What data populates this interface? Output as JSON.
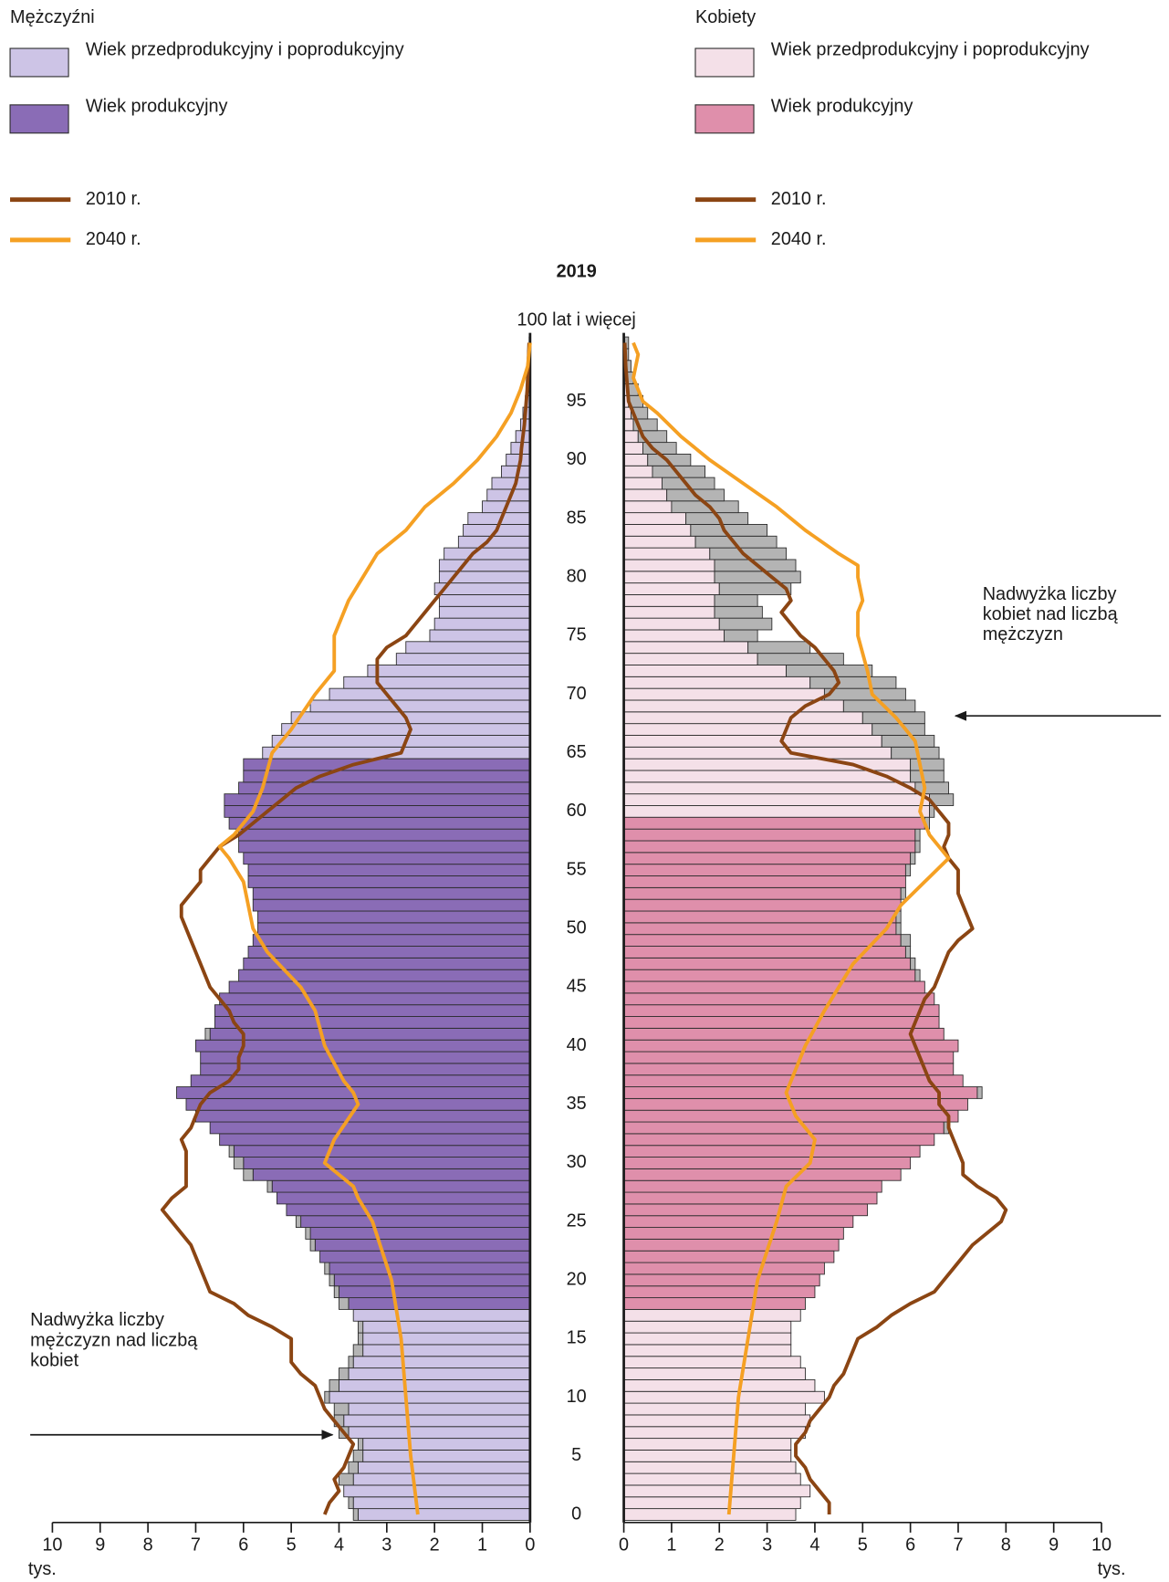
{
  "chart_data": {
    "type": "pyramid",
    "title": "2019",
    "y": [
      0,
      1,
      2,
      3,
      4,
      5,
      6,
      7,
      8,
      9,
      10,
      11,
      12,
      13,
      14,
      15,
      16,
      17,
      18,
      19,
      20,
      21,
      22,
      23,
      24,
      25,
      26,
      27,
      28,
      29,
      30,
      31,
      32,
      33,
      34,
      35,
      36,
      37,
      38,
      39,
      40,
      41,
      42,
      43,
      44,
      45,
      46,
      47,
      48,
      49,
      50,
      51,
      52,
      53,
      54,
      55,
      56,
      57,
      58,
      59,
      60,
      61,
      62,
      63,
      64,
      65,
      66,
      67,
      68,
      69,
      70,
      71,
      72,
      73,
      74,
      75,
      76,
      77,
      78,
      79,
      80,
      81,
      82,
      83,
      84,
      85,
      86,
      87,
      88,
      89,
      90,
      91,
      92,
      93,
      94,
      95,
      96,
      97,
      98,
      99,
      100
    ],
    "ylim": [
      -0.6,
      100.6
    ],
    "yticks": [
      0,
      5,
      10,
      15,
      20,
      25,
      30,
      35,
      40,
      45,
      50,
      55,
      60,
      65,
      70,
      75,
      80,
      85,
      90,
      95,
      {
        "value": 100,
        "label": "100 lat i więcej"
      }
    ],
    "surplus_color": "#b4b4b4",
    "sides": [
      {
        "name": "Mężczyźni",
        "direction": "left",
        "xlim": [
          0,
          10
        ],
        "xticks": [
          0,
          1,
          2,
          3,
          4,
          5,
          6,
          7,
          8,
          9,
          10
        ],
        "xlabel": "tys.",
        "annotation": [
          "Nadwyżka liczby",
          "mężczyzn nad liczbą",
          "kobiet"
        ],
        "series": [
          {
            "name": "Wiek przedprodukcyjny i poprodukcyjny",
            "color": "#cdc4e6",
            "values": [
              3.7,
              3.8,
              3.9,
              4.0,
              3.8,
              3.7,
              3.6,
              4.0,
              4.1,
              4.1,
              4.3,
              4.2,
              4.0,
              3.8,
              3.7,
              3.6,
              3.6,
              3.7,
              null,
              null,
              null,
              null,
              null,
              null,
              null,
              null,
              null,
              null,
              null,
              null,
              null,
              null,
              null,
              null,
              null,
              null,
              null,
              null,
              null,
              null,
              null,
              null,
              null,
              null,
              null,
              null,
              null,
              null,
              null,
              null,
              null,
              null,
              null,
              null,
              null,
              null,
              null,
              null,
              null,
              null,
              null,
              null,
              null,
              null,
              null,
              5.6,
              5.4,
              5.2,
              5.0,
              4.6,
              4.2,
              3.9,
              3.4,
              2.8,
              2.6,
              2.1,
              2.0,
              1.9,
              1.9,
              2.0,
              1.9,
              1.9,
              1.8,
              1.5,
              1.4,
              1.3,
              1.0,
              0.9,
              0.8,
              0.6,
              0.5,
              0.4,
              0.3,
              0.2,
              0.15,
              0.1,
              0.07,
              0.05,
              0.03,
              0.02,
              0.02
            ]
          },
          {
            "name": "Wiek produkcyjny",
            "color": "#8a6cb6",
            "values": [
              null,
              null,
              null,
              null,
              null,
              null,
              null,
              null,
              null,
              null,
              null,
              null,
              null,
              null,
              null,
              null,
              null,
              null,
              4.0,
              4.1,
              4.2,
              4.3,
              4.4,
              4.6,
              4.7,
              4.9,
              5.1,
              5.3,
              5.5,
              6.0,
              6.2,
              6.3,
              6.5,
              6.7,
              7.0,
              7.2,
              7.4,
              7.1,
              6.9,
              6.9,
              7.0,
              6.8,
              6.6,
              6.6,
              6.5,
              6.3,
              6.1,
              6.0,
              5.9,
              5.8,
              5.7,
              5.7,
              5.8,
              5.8,
              5.9,
              5.9,
              6.0,
              6.1,
              6.1,
              6.3,
              6.4,
              6.4,
              6.1,
              6.0,
              6.0,
              null,
              null,
              null,
              null,
              null,
              null,
              null,
              null,
              null,
              null,
              null,
              null,
              null,
              null,
              null,
              null,
              null,
              null,
              null,
              null,
              null,
              null,
              null,
              null,
              null,
              null,
              null,
              null,
              null,
              null,
              null,
              null,
              null,
              null,
              null,
              null
            ]
          }
        ],
        "lines": [
          {
            "name": "2010 r.",
            "color": "#8b4513",
            "values": [
              4.3,
              4.2,
              4.0,
              4.1,
              3.9,
              3.8,
              3.7,
              3.9,
              4.1,
              4.3,
              4.4,
              4.5,
              4.8,
              5.0,
              5.0,
              5.0,
              5.4,
              5.9,
              6.2,
              6.7,
              6.8,
              6.9,
              7.0,
              7.1,
              7.3,
              7.5,
              7.7,
              7.5,
              7.2,
              7.2,
              7.2,
              7.2,
              7.3,
              7.1,
              7.0,
              6.9,
              6.7,
              6.3,
              6.1,
              6.1,
              6.0,
              6.0,
              6.2,
              6.3,
              6.5,
              6.7,
              6.8,
              6.9,
              7.0,
              7.1,
              7.2,
              7.3,
              7.3,
              7.1,
              6.9,
              6.9,
              6.7,
              6.5,
              6.1,
              5.8,
              5.5,
              5.2,
              4.9,
              4.4,
              3.7,
              2.7,
              2.6,
              2.5,
              2.6,
              2.8,
              3.0,
              3.2,
              3.2,
              3.2,
              3.0,
              2.6,
              2.4,
              2.2,
              2.0,
              1.8,
              1.6,
              1.4,
              1.2,
              0.9,
              0.7,
              0.6,
              0.5,
              0.4,
              0.3,
              0.25,
              0.2,
              0.18,
              0.15,
              0.12,
              0.1,
              0.08,
              0.06,
              0.05,
              0.04,
              0.03,
              0.02
            ]
          },
          {
            "name": "2040 r.",
            "color": "#f5a023",
            "x": [
              0,
              5,
              10,
              15,
              20,
              25,
              27,
              28,
              30,
              31,
              32,
              35,
              36,
              37,
              40,
              43,
              45,
              48,
              50,
              52,
              54,
              56,
              57,
              58,
              60,
              62,
              65,
              67,
              70,
              72,
              75,
              78,
              80,
              82,
              84,
              86,
              88,
              90,
              92,
              94,
              96,
              98,
              100
            ],
            "values": [
              2.35,
              2.5,
              2.6,
              2.7,
              2.9,
              3.3,
              3.6,
              3.7,
              4.3,
              4.2,
              4.1,
              3.6,
              3.7,
              3.9,
              4.3,
              4.5,
              4.8,
              5.5,
              5.8,
              5.9,
              6.0,
              6.3,
              6.5,
              6.2,
              5.8,
              5.6,
              5.4,
              5.0,
              4.5,
              4.1,
              4.1,
              3.8,
              3.5,
              3.2,
              2.6,
              2.2,
              1.6,
              1.1,
              0.7,
              0.4,
              0.2,
              0.05,
              0
            ]
          }
        ]
      },
      {
        "name": "Kobiety",
        "direction": "right",
        "xlim": [
          0,
          10
        ],
        "xticks": [
          0,
          1,
          2,
          3,
          4,
          5,
          6,
          7,
          8,
          9,
          10
        ],
        "xlabel": "tys.",
        "annotation": [
          "Nadwyżka liczby",
          "kobiet nad liczbą",
          "mężczyzn"
        ],
        "series": [
          {
            "name": "Wiek przedprodukcyjny i poprodukcyjny",
            "color": "#f4e0e8",
            "values": [
              3.6,
              3.7,
              3.9,
              3.7,
              3.6,
              3.5,
              3.5,
              3.8,
              3.9,
              3.8,
              4.2,
              4.0,
              3.8,
              3.7,
              3.5,
              3.5,
              3.5,
              3.7,
              null,
              null,
              null,
              null,
              null,
              null,
              null,
              null,
              null,
              null,
              null,
              null,
              null,
              null,
              null,
              null,
              null,
              null,
              null,
              null,
              null,
              null,
              null,
              null,
              null,
              null,
              null,
              null,
              null,
              null,
              null,
              null,
              null,
              null,
              null,
              null,
              null,
              null,
              null,
              null,
              null,
              null,
              6.5,
              6.9,
              6.8,
              6.7,
              6.7,
              6.6,
              6.5,
              6.3,
              6.3,
              6.1,
              5.9,
              5.7,
              5.2,
              4.6,
              3.9,
              2.8,
              3.1,
              2.9,
              2.8,
              3.5,
              3.7,
              3.6,
              3.4,
              3.2,
              3.0,
              2.6,
              2.4,
              2.1,
              1.9,
              1.7,
              1.4,
              1.1,
              0.9,
              0.7,
              0.5,
              0.4,
              0.3,
              0.2,
              0.15,
              0.1,
              0.1
            ]
          },
          {
            "name": "Wiek produkcyjny",
            "color": "#df8fab",
            "values": [
              null,
              null,
              null,
              null,
              null,
              null,
              null,
              null,
              null,
              null,
              null,
              null,
              null,
              null,
              null,
              null,
              null,
              null,
              3.8,
              4.0,
              4.1,
              4.2,
              4.4,
              4.5,
              4.6,
              4.8,
              5.1,
              5.3,
              5.4,
              5.8,
              6.0,
              6.2,
              6.5,
              6.8,
              7.0,
              7.2,
              7.5,
              7.1,
              6.9,
              6.9,
              7.0,
              6.7,
              6.6,
              6.6,
              6.5,
              6.3,
              6.2,
              6.1,
              6.0,
              6.0,
              5.8,
              5.8,
              5.8,
              5.9,
              5.9,
              6.0,
              6.1,
              6.2,
              6.2,
              6.4,
              null,
              null,
              null,
              null,
              null,
              null,
              null,
              null,
              null,
              null,
              null,
              null,
              null,
              null,
              null,
              null,
              null,
              null,
              null,
              null,
              null,
              null,
              null,
              null,
              null,
              null,
              null,
              null,
              null,
              null,
              null,
              null,
              null,
              null,
              null,
              null,
              null,
              null,
              null,
              null,
              null
            ]
          }
        ],
        "lines": [
          {
            "name": "2010 r.",
            "color": "#8b4513",
            "values": [
              4.3,
              4.3,
              4.1,
              3.9,
              3.8,
              3.6,
              3.6,
              3.8,
              3.9,
              4.1,
              4.3,
              4.4,
              4.6,
              4.7,
              4.8,
              4.9,
              5.3,
              5.6,
              6.0,
              6.5,
              6.7,
              6.9,
              7.1,
              7.3,
              7.6,
              7.9,
              8.0,
              7.8,
              7.4,
              7.1,
              7.1,
              7.0,
              6.9,
              6.8,
              6.8,
              6.6,
              6.6,
              6.4,
              6.3,
              6.2,
              6.1,
              6.0,
              6.1,
              6.2,
              6.3,
              6.5,
              6.6,
              6.7,
              6.8,
              7.0,
              7.3,
              7.2,
              7.1,
              7.0,
              7.0,
              7.0,
              6.8,
              6.7,
              6.8,
              6.8,
              6.6,
              6.4,
              6.0,
              5.5,
              4.8,
              3.5,
              3.3,
              3.4,
              3.5,
              3.8,
              4.3,
              4.5,
              4.4,
              4.2,
              4.0,
              3.7,
              3.5,
              3.3,
              3.5,
              3.4,
              3.1,
              2.8,
              2.5,
              2.3,
              2.1,
              2.0,
              1.8,
              1.5,
              1.3,
              1.1,
              0.9,
              0.6,
              0.4,
              0.3,
              0.2,
              0.1,
              0.08,
              0.06,
              0.04,
              0.03,
              0.02
            ]
          },
          {
            "name": "2040 r.",
            "color": "#f5a023",
            "x": [
              0,
              10,
              15,
              20,
              25,
              28,
              30,
              32,
              34,
              36,
              38,
              40,
              43,
              45,
              47,
              50,
              52,
              54,
              56,
              57,
              58,
              60,
              62,
              64,
              66,
              68,
              70,
              72,
              75,
              77,
              78,
              80,
              81,
              82,
              84,
              86,
              88,
              90,
              92,
              94,
              95,
              97,
              99,
              100
            ],
            "values": [
              2.2,
              2.4,
              2.6,
              2.8,
              3.2,
              3.4,
              3.9,
              4.0,
              3.6,
              3.4,
              3.6,
              3.8,
              4.2,
              4.5,
              4.8,
              5.5,
              5.8,
              6.3,
              6.8,
              6.6,
              6.4,
              6.2,
              6.3,
              6.2,
              6.1,
              5.7,
              5.2,
              5.1,
              4.9,
              4.9,
              5.0,
              4.9,
              4.9,
              4.5,
              3.8,
              3.2,
              2.5,
              1.8,
              1.2,
              0.7,
              0.4,
              0.2,
              0.3,
              0.2
            ]
          }
        ]
      }
    ]
  }
}
